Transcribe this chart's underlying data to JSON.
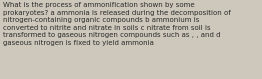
{
  "text": "What is the process of ammonification shown by some\nprokaryotes? a ammonia is released during the decomposition of\nnitrogen-containing organic compounds b ammonium is\nconverted to nitrite and nitrate in soils c nitrate from soil is\ntransformed to gaseous nitrogen compounds such as , , and d\ngaseous nitrogen is fixed to yield ammonia",
  "background_color": "#cdc8bb",
  "text_color": "#2b2b2b",
  "font_size": 5.0,
  "fig_width": 2.62,
  "fig_height": 0.79,
  "dpi": 100
}
